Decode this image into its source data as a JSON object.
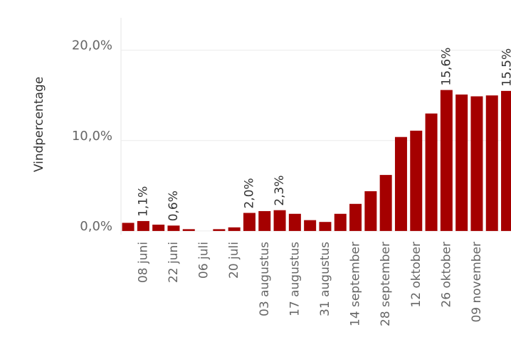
{
  "chart_data": {
    "type": "bar",
    "y_label": "Vindpercentage",
    "categories": [
      null,
      "08 juni",
      null,
      "22 juni",
      null,
      "06 juli",
      null,
      "20 juli",
      null,
      "03 augustus",
      null,
      "17 augustus",
      null,
      "31 augustus",
      null,
      "14 september",
      null,
      "28 september",
      null,
      "12 oktober",
      null,
      "26 oktober",
      null,
      "09 november",
      null,
      null
    ],
    "values": [
      0.9,
      1.1,
      0.7,
      0.6,
      0.2,
      0,
      0.2,
      0.4,
      2.0,
      2.2,
      2.3,
      1.9,
      1.2,
      1.0,
      1.9,
      3.0,
      4.4,
      6.2,
      10.4,
      11.1,
      13.0,
      15.6,
      15.1,
      14.9,
      15.0,
      15.5
    ],
    "value_labels": [
      null,
      "1,1%",
      null,
      "0,6%",
      null,
      null,
      null,
      null,
      "2,0%",
      null,
      "2,3%",
      null,
      null,
      null,
      null,
      null,
      null,
      null,
      null,
      null,
      null,
      "15,6%",
      null,
      null,
      null,
      "15,5%"
    ],
    "color": "#a50000",
    "ylim": [
      -0.4,
      23.2
    ],
    "yticks": [
      {
        "value": 0,
        "label": "0,0%"
      },
      {
        "value": 10,
        "label": "10,0%"
      },
      {
        "value": 20,
        "label": "20,0%"
      }
    ],
    "grid": true
  }
}
